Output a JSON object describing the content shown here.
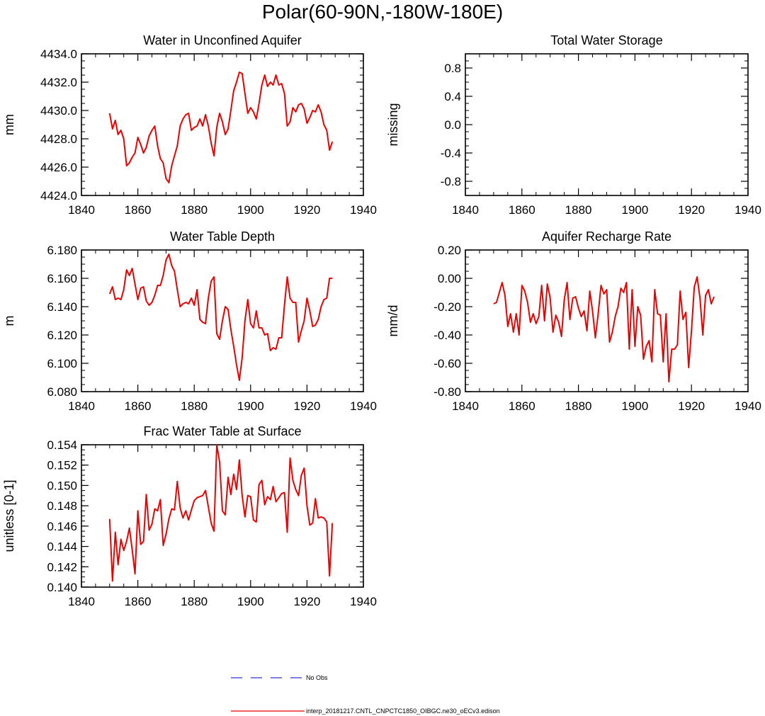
{
  "title": "Polar(60-90N,-180W-180E)",
  "legend": {
    "obs_label": "No Obs",
    "obs_color": "#3333dd",
    "model_label": "interp_20181217.CNTL_CNPCTC1850_OIBGC.ne30_oECv3.edison",
    "model_color": "#ee0000"
  },
  "chart_data": [
    {
      "id": "wa",
      "type": "line",
      "title": "Water in Unconfined Aquifer",
      "ylabel": "mm",
      "xlabel": "",
      "xlim": [
        1840,
        1940
      ],
      "ylim": [
        4424.0,
        4434.0
      ],
      "xticks": [
        1840,
        1860,
        1880,
        1900,
        1920,
        1940
      ],
      "yticks": [
        4424.0,
        4426.0,
        4428.0,
        4430.0,
        4432.0,
        4434.0
      ],
      "ytick_labels": [
        "4424.0",
        "4426.0",
        "4428.0",
        "4430.0",
        "4432.0",
        "4434.0"
      ],
      "series": [
        {
          "name": "interp_20181217.CNTL_CNPCTC1850_OIBGC.ne30_oECv3.edison",
          "x_start": 1850,
          "values": [
            4429.8,
            4428.7,
            4429.3,
            4428.3,
            4428.6,
            4428.0,
            4426.1,
            4426.3,
            4426.7,
            4427.0,
            4428.1,
            4427.6,
            4427.0,
            4427.4,
            4428.2,
            4428.6,
            4428.9,
            4427.5,
            4426.6,
            4426.3,
            4425.2,
            4424.9,
            4426.1,
            4426.8,
            4427.5,
            4428.9,
            4429.4,
            4429.7,
            4429.8,
            4428.6,
            4428.8,
            4428.9,
            4429.4,
            4428.9,
            4429.7,
            4428.9,
            4427.7,
            4426.8,
            4428.8,
            4429.8,
            4429.2,
            4428.3,
            4428.7,
            4430.0,
            4431.4,
            4432.0,
            4432.7,
            4432.6,
            4431.2,
            4429.8,
            4430.2,
            4429.9,
            4429.4,
            4430.5,
            4431.8,
            4432.5,
            4431.7,
            4432.0,
            4431.8,
            4432.5,
            4431.8,
            4431.9,
            4431.2,
            4428.9,
            4429.2,
            4430.2,
            4429.9,
            4430.4,
            4430.5,
            4430.1,
            4429.1,
            4429.5,
            4430.0,
            4429.9,
            4430.4,
            4429.9,
            4429.0,
            4428.6,
            4427.2,
            4427.8
          ]
        }
      ]
    },
    {
      "id": "tws",
      "type": "line",
      "title": "Total Water Storage",
      "ylabel": "missing",
      "xlabel": "",
      "xlim": [
        1840,
        1940
      ],
      "ylim": [
        -1.0,
        1.0
      ],
      "xticks": [
        1840,
        1860,
        1880,
        1900,
        1920,
        1940
      ],
      "yticks": [
        -0.8,
        -0.4,
        0.0,
        0.4,
        0.8
      ],
      "ytick_labels": [
        "-0.8",
        "-0.4",
        "0.0",
        "0.4",
        "0.8"
      ],
      "series": []
    },
    {
      "id": "wtd",
      "type": "line",
      "title": "Water Table Depth",
      "ylabel": "m",
      "xlabel": "",
      "xlim": [
        1840,
        1940
      ],
      "ylim": [
        6.08,
        6.18
      ],
      "xticks": [
        1840,
        1860,
        1880,
        1900,
        1920,
        1940
      ],
      "yticks": [
        6.08,
        6.1,
        6.12,
        6.14,
        6.16,
        6.18
      ],
      "ytick_labels": [
        "6.080",
        "6.100",
        "6.120",
        "6.140",
        "6.160",
        "6.180"
      ],
      "series": [
        {
          "name": "interp_20181217.CNTL_CNPCTC1850_OIBGC.ne30_oECv3.edison",
          "x_start": 1850,
          "values": [
            6.149,
            6.154,
            6.145,
            6.146,
            6.145,
            6.152,
            6.166,
            6.162,
            6.167,
            6.156,
            6.145,
            6.153,
            6.154,
            6.144,
            6.141,
            6.143,
            6.148,
            6.155,
            6.155,
            6.162,
            6.173,
            6.177,
            6.169,
            6.165,
            6.152,
            6.14,
            6.142,
            6.143,
            6.142,
            6.146,
            6.141,
            6.152,
            6.131,
            6.129,
            6.128,
            6.146,
            6.158,
            6.161,
            6.121,
            6.117,
            6.13,
            6.14,
            6.138,
            6.124,
            6.112,
            6.099,
            6.088,
            6.104,
            6.13,
            6.145,
            6.128,
            6.125,
            6.137,
            6.125,
            6.125,
            6.12,
            6.121,
            6.109,
            6.111,
            6.11,
            6.118,
            6.118,
            6.141,
            6.161,
            6.146,
            6.143,
            6.143,
            6.115,
            6.123,
            6.13,
            6.146,
            6.137,
            6.126,
            6.127,
            6.131,
            6.14,
            6.145,
            6.146,
            6.16,
            6.16
          ]
        }
      ]
    },
    {
      "id": "arr",
      "type": "line",
      "title": "Aquifer Recharge Rate",
      "ylabel": "mm/d",
      "xlabel": "",
      "xlim": [
        1840,
        1940
      ],
      "ylim": [
        -0.8,
        0.2
      ],
      "xticks": [
        1840,
        1860,
        1880,
        1900,
        1920,
        1940
      ],
      "yticks": [
        -0.8,
        -0.6,
        -0.4,
        -0.2,
        0.0,
        0.2
      ],
      "ytick_labels": [
        "-0.80",
        "-0.60",
        "-0.40",
        "-0.20",
        "0.00",
        "0.20"
      ],
      "series": [
        {
          "name": "interp_20181217.CNTL_CNPCTC1850_OIBGC.ne30_oECv3.edison",
          "x_start": 1850,
          "values": [
            -0.18,
            -0.17,
            -0.1,
            -0.03,
            -0.12,
            -0.34,
            -0.25,
            -0.38,
            -0.25,
            -0.4,
            -0.05,
            -0.09,
            -0.17,
            -0.31,
            -0.25,
            -0.32,
            -0.27,
            -0.05,
            -0.3,
            -0.04,
            -0.14,
            -0.38,
            -0.26,
            -0.31,
            -0.41,
            -0.15,
            -0.03,
            -0.29,
            -0.14,
            -0.13,
            -0.21,
            -0.27,
            -0.23,
            -0.37,
            -0.09,
            -0.23,
            -0.42,
            -0.25,
            -0.05,
            -0.11,
            -0.08,
            -0.45,
            -0.38,
            -0.27,
            -0.2,
            -0.07,
            -0.1,
            -0.03,
            -0.5,
            -0.08,
            -0.48,
            -0.2,
            -0.26,
            -0.57,
            -0.48,
            -0.44,
            -0.59,
            -0.08,
            -0.25,
            -0.26,
            -0.59,
            -0.25,
            -0.73,
            -0.5,
            -0.5,
            -0.47,
            -0.09,
            -0.29,
            -0.24,
            -0.63,
            -0.37,
            -0.06,
            0.01,
            -0.14,
            -0.4,
            -0.12,
            -0.08,
            -0.18,
            -0.13
          ]
        }
      ]
    },
    {
      "id": "frac",
      "type": "line",
      "title": "Frac Water Table at Surface",
      "ylabel": "unitless [0-1]",
      "xlabel": "",
      "xlim": [
        1840,
        1940
      ],
      "ylim": [
        0.14,
        0.154
      ],
      "xticks": [
        1840,
        1860,
        1880,
        1900,
        1920,
        1940
      ],
      "yticks": [
        0.14,
        0.142,
        0.144,
        0.146,
        0.148,
        0.15,
        0.152,
        0.154
      ],
      "ytick_labels": [
        "0.140",
        "0.142",
        "0.144",
        "0.146",
        "0.148",
        "0.150",
        "0.152",
        "0.154"
      ],
      "series": [
        {
          "name": "interp_20181217.CNTL_CNPCTC1850_OIBGC.ne30_oECv3.edison",
          "x_start": 1850,
          "values": [
            0.1467,
            0.1406,
            0.1454,
            0.1422,
            0.1447,
            0.1436,
            0.1445,
            0.1458,
            0.1437,
            0.1413,
            0.1475,
            0.1442,
            0.1445,
            0.1491,
            0.1456,
            0.1462,
            0.1477,
            0.1475,
            0.1486,
            0.1441,
            0.1452,
            0.1467,
            0.1477,
            0.1476,
            0.1504,
            0.1478,
            0.1468,
            0.1475,
            0.1466,
            0.1476,
            0.1485,
            0.1488,
            0.1489,
            0.149,
            0.1495,
            0.1479,
            0.1463,
            0.1455,
            0.154,
            0.1523,
            0.1475,
            0.1471,
            0.1508,
            0.1491,
            0.1511,
            0.1496,
            0.1525,
            0.149,
            0.1469,
            0.149,
            0.1489,
            0.1466,
            0.1464,
            0.1501,
            0.1505,
            0.1481,
            0.1489,
            0.1486,
            0.1499,
            0.1484,
            0.1488,
            0.1492,
            0.1493,
            0.1454,
            0.1527,
            0.1505,
            0.1496,
            0.149,
            0.151,
            0.1517,
            0.148,
            0.1461,
            0.1463,
            0.1487,
            0.1468,
            0.1469,
            0.1468,
            0.1464,
            0.1411,
            0.1463
          ]
        }
      ]
    }
  ]
}
